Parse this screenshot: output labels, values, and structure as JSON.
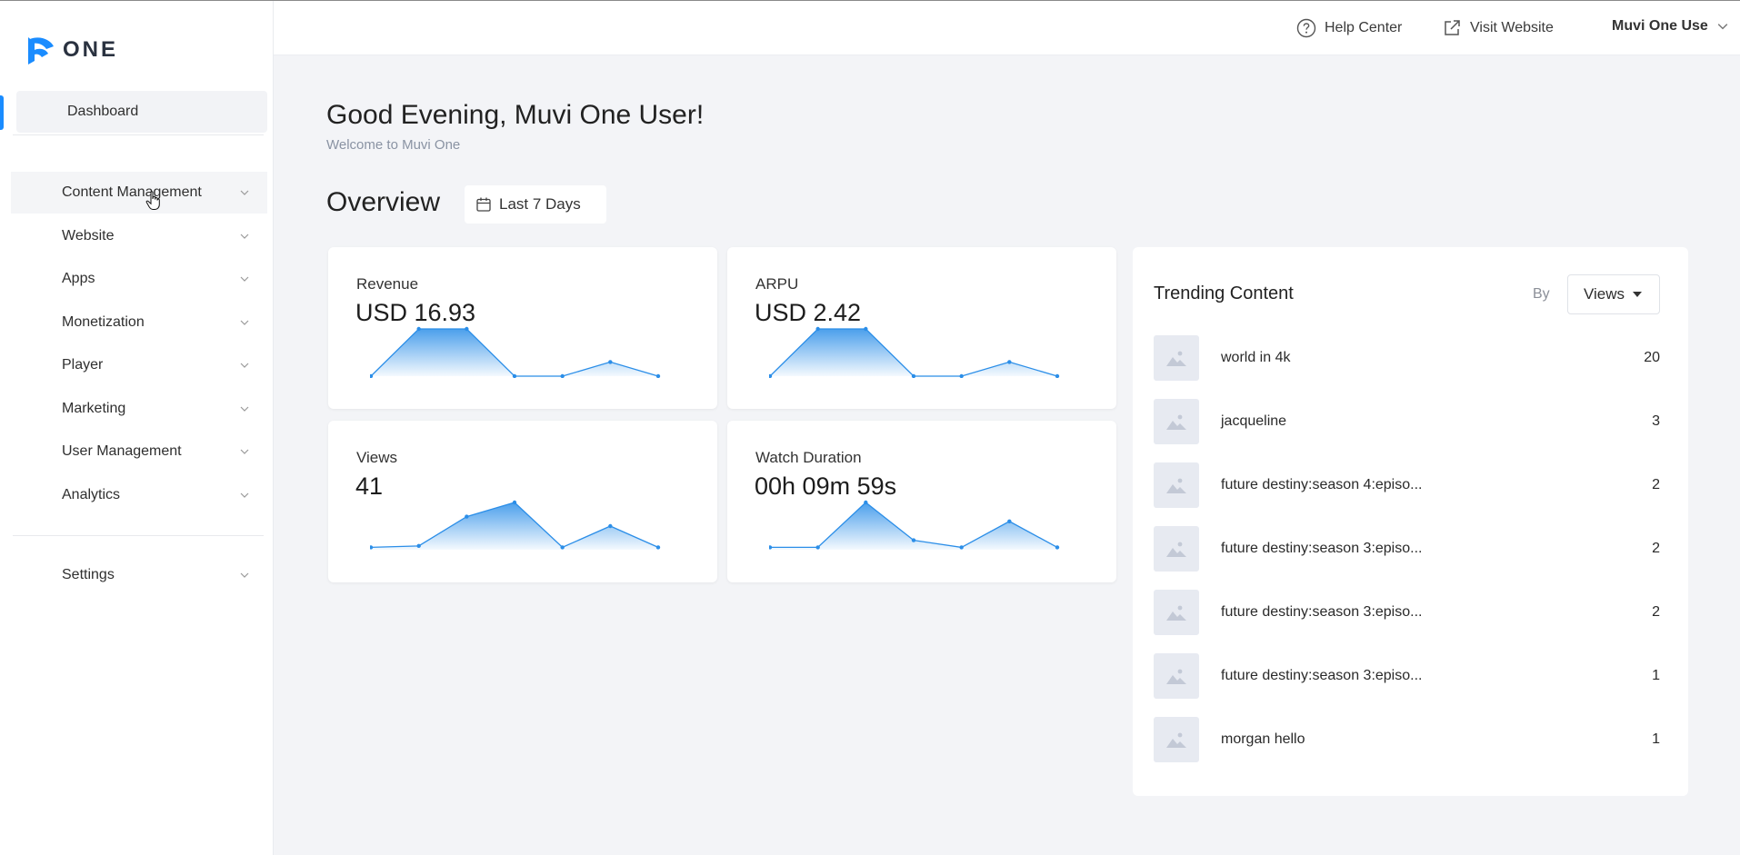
{
  "brand": {
    "logo_text": "ONE",
    "accent": "#1a8cff"
  },
  "header": {
    "help": "Help Center",
    "visit": "Visit Website",
    "user": "Muvi One Use"
  },
  "sidebar": {
    "items": [
      {
        "label": "Dashboard"
      },
      {
        "label": "Content Management"
      },
      {
        "label": "Website"
      },
      {
        "label": "Apps"
      },
      {
        "label": "Monetization"
      },
      {
        "label": "Player"
      },
      {
        "label": "Marketing"
      },
      {
        "label": "User Management"
      },
      {
        "label": "Analytics"
      },
      {
        "label": "Settings"
      }
    ]
  },
  "main": {
    "greeting": "Good Evening, Muvi One User!",
    "welcome": "Welcome to Muvi One",
    "overview": "Overview",
    "date_range": "Last 7 Days"
  },
  "cards": [
    {
      "label": "Revenue",
      "value": "USD 16.93",
      "points": [
        0,
        1,
        1,
        0,
        0,
        0.3,
        0
      ]
    },
    {
      "label": "ARPU",
      "value": "USD 2.42",
      "points": [
        0,
        1,
        1,
        0,
        0,
        0.3,
        0
      ]
    },
    {
      "label": "Views",
      "value": "41",
      "points": [
        0.05,
        0.08,
        0.7,
        1,
        0.05,
        0.5,
        0.05
      ]
    },
    {
      "label": "Watch Duration",
      "value": "00h 09m 59s",
      "points": [
        0.05,
        0.05,
        1,
        0.2,
        0.05,
        0.6,
        0.05
      ]
    }
  ],
  "trending": {
    "title": "Trending Content",
    "by": "By",
    "sort": "Views",
    "rows": [
      {
        "name": "world in 4k",
        "count": "20"
      },
      {
        "name": "jacqueline",
        "count": "3"
      },
      {
        "name": "future destiny:season 4:episo...",
        "count": "2"
      },
      {
        "name": "future destiny:season 3:episo...",
        "count": "2"
      },
      {
        "name": "future destiny:season 3:episo...",
        "count": "2"
      },
      {
        "name": "future destiny:season 3:episo...",
        "count": "1"
      },
      {
        "name": "morgan hello",
        "count": "1"
      }
    ]
  }
}
